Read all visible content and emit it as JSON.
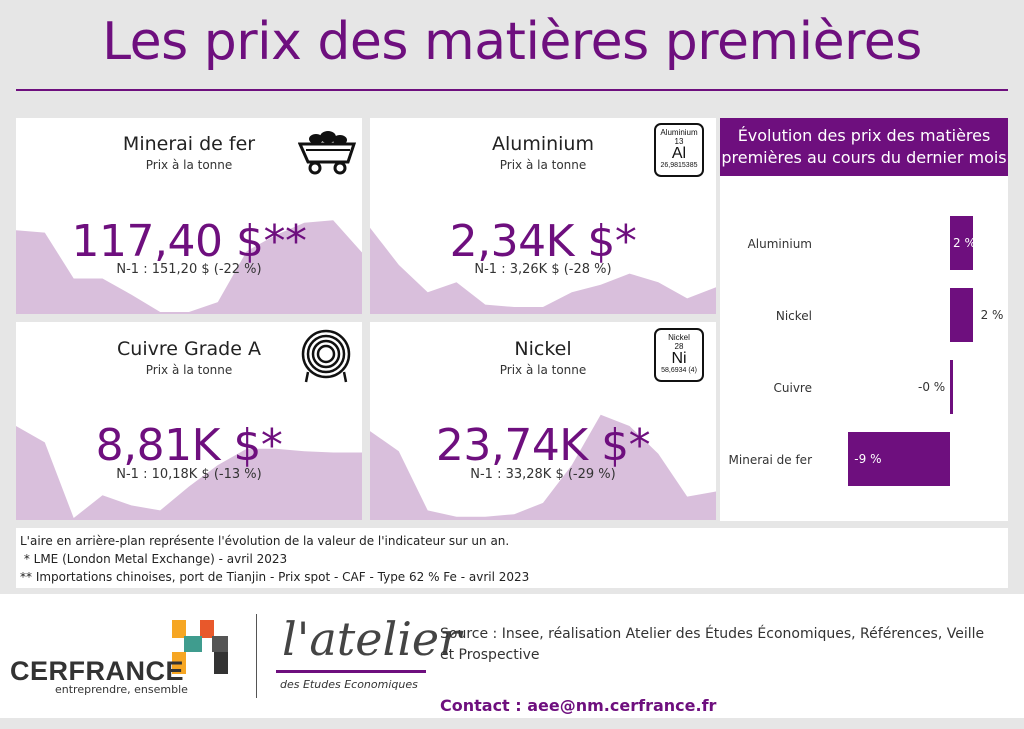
{
  "title": "Les prix des matières premières",
  "cards": [
    {
      "title": "Minerai de fer",
      "subtitle": "Prix à la tonne",
      "value": "117,40 $**",
      "n1": "N-1 : 151,20 $ (-22 %)",
      "icon": "mine-cart-icon",
      "trend": [
        0.66,
        0.64,
        0.27,
        0.27,
        0.14,
        0.0,
        0.0,
        0.08,
        0.49,
        0.62,
        0.72,
        0.74,
        0.48
      ]
    },
    {
      "title": "Aluminium",
      "subtitle": "Prix à la tonne",
      "value": "2,34K $*",
      "n1": "N-1 : 3,26K $ (-28 %)",
      "icon": "aluminium-element-icon",
      "element": {
        "name": "Aluminium",
        "number": "13",
        "symbol": "Al",
        "mass": "26,9815385"
      },
      "trend": [
        0.68,
        0.38,
        0.16,
        0.24,
        0.06,
        0.04,
        0.04,
        0.16,
        0.22,
        0.31,
        0.24,
        0.11,
        0.2
      ]
    },
    {
      "title": "Cuivre Grade A",
      "subtitle": "Prix à la tonne",
      "value": "8,81K $*",
      "n1": "N-1 : 10,18K $ (-13 %)",
      "icon": "copper-coil-icon",
      "trend": [
        0.73,
        0.6,
        0.0,
        0.18,
        0.1,
        0.06,
        0.25,
        0.42,
        0.55,
        0.55,
        0.53,
        0.52,
        0.52
      ]
    },
    {
      "title": "Nickel",
      "subtitle": "Prix à la tonne",
      "value": "23,74K $*",
      "n1": "N-1 : 33,28K $ (-29 %)",
      "icon": "nickel-element-icon",
      "element": {
        "name": "Nickel",
        "number": "28",
        "symbol": "Ni",
        "mass": "58,6934 (4)"
      },
      "trend": [
        0.69,
        0.53,
        0.06,
        0.01,
        0.01,
        0.03,
        0.12,
        0.42,
        0.82,
        0.73,
        0.51,
        0.17,
        0.21
      ]
    }
  ],
  "monthly": {
    "title": "Évolution des prix des matières premières au cours du dernier mois",
    "chart_data": {
      "type": "bar",
      "orientation": "horizontal",
      "categories": [
        "Aluminium",
        "Nickel",
        "Cuivre",
        "Minerai de fer"
      ],
      "values": [
        2,
        2,
        0,
        -9
      ],
      "labels": [
        "2 %",
        "2 %",
        "-0 %",
        "-9 %"
      ],
      "unit": "%",
      "bar_color": "#6e0f7e"
    }
  },
  "notes": [
    "L'aire en arrière-plan représente l'évolution de la valeur de l'indicateur sur un an.",
    " * LME (London Metal Exchange) - avril 2023",
    "** Importations chinoises, port de Tianjin - Prix spot - CAF - Type 62 % Fe - avril 2023"
  ],
  "footer": {
    "cerfrance": "CERFRANCE",
    "cerfrance_tag": "entreprendre, ensemble",
    "atelier": "l'atelier",
    "atelier_tag": "des Etudes Economiques",
    "source": "Source : Insee, réalisation Atelier des Études Économiques, Références, Veille et Prospective",
    "contact": "Contact : aee@nm.cerfrance.fr"
  },
  "colors": {
    "accent": "#6e0f7e",
    "area": "#d9bfdc",
    "background": "#e6e6e6"
  }
}
